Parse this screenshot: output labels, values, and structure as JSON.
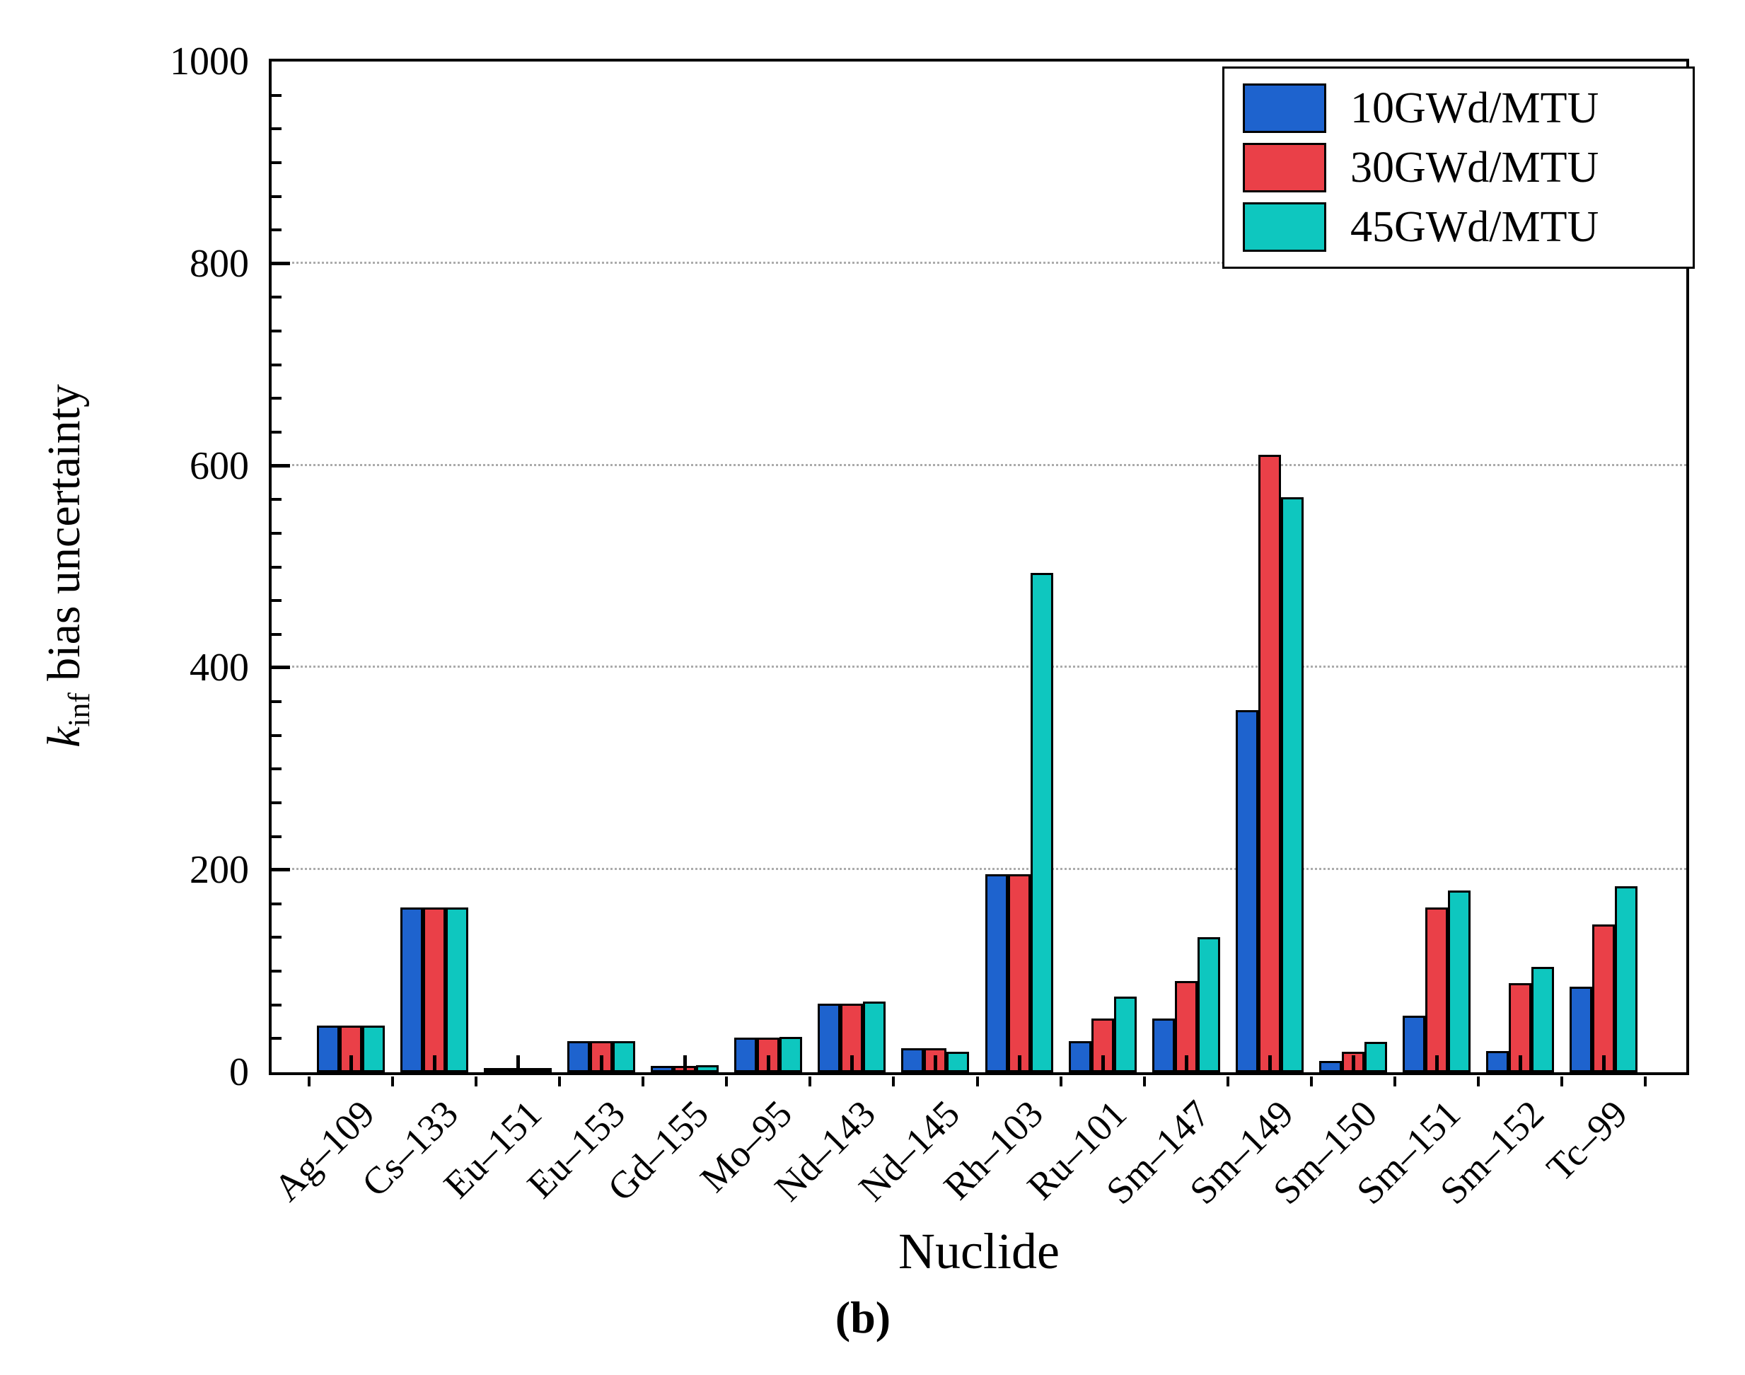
{
  "chart_data": {
    "type": "bar",
    "title": "",
    "xlabel": "Nuclide",
    "ylabel": {
      "k": "k",
      "sub": "inf",
      "rest": " bias uncertainty"
    },
    "caption": "(b)",
    "ylim": [
      0,
      1000
    ],
    "yticks": [
      0,
      200,
      400,
      600,
      800,
      1000
    ],
    "y_minor_per_major": 5,
    "grid": "horizontal dotted at major ticks",
    "legend_position": "top-right",
    "categories": [
      "Ag–109",
      "Cs–133",
      "Eu–151",
      "Eu–153",
      "Gd–155",
      "Mo–95",
      "Nd–143",
      "Nd–145",
      "Rh–103",
      "Ru–101",
      "Sm–147",
      "Sm–149",
      "Sm–150",
      "Sm–151",
      "Sm–152",
      "Tc–99"
    ],
    "series": [
      {
        "name": "10GWd/MTU",
        "color": "#1E63CE",
        "values": [
          46,
          163,
          2,
          31,
          6,
          34,
          68,
          24,
          196,
          31,
          53,
          358,
          11,
          56,
          21,
          85
        ]
      },
      {
        "name": "30GWd/MTU",
        "color": "#EA4048",
        "values": [
          46,
          163,
          2,
          31,
          6,
          34,
          68,
          24,
          196,
          53,
          90,
          611,
          20,
          163,
          88,
          146
        ]
      },
      {
        "name": "45GWd/MTU",
        "color": "#0EC7BF",
        "values": [
          46,
          163,
          2,
          31,
          7,
          35,
          70,
          20,
          494,
          75,
          134,
          569,
          30,
          180,
          104,
          184
        ]
      }
    ]
  }
}
